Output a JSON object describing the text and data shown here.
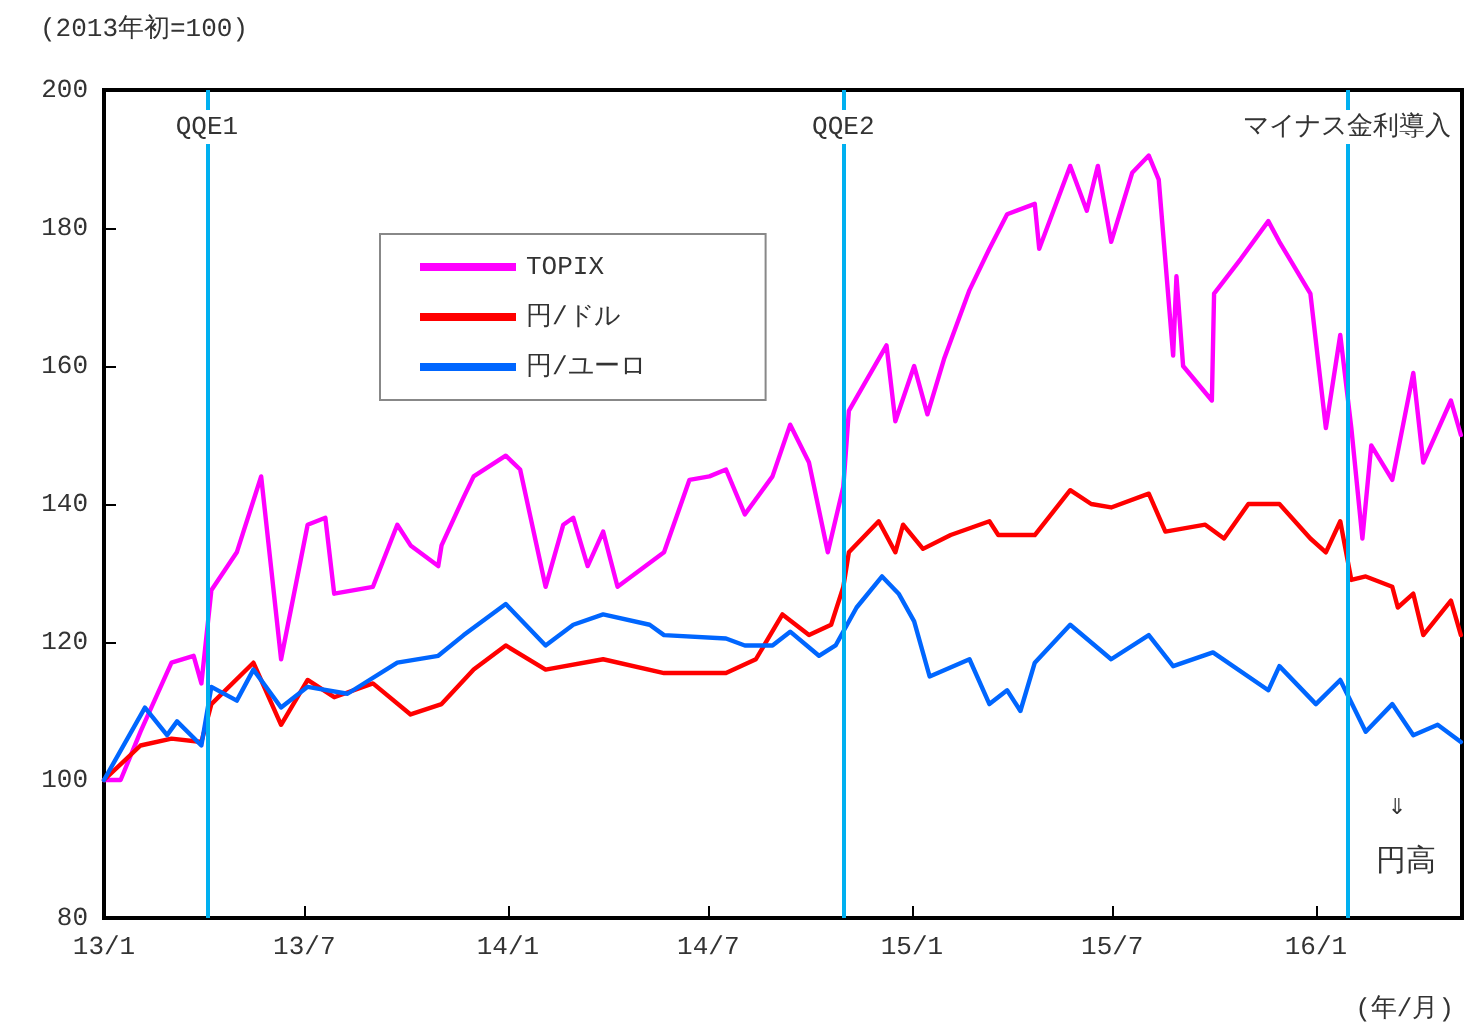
{
  "chart_data": {
    "type": "line",
    "ylabel": "(2013年初=100)",
    "xlabel": "(年/月)",
    "annotations": [
      "⇓",
      "円高"
    ],
    "xlim": [
      "2013-01-01",
      "2016-05-12"
    ],
    "xticks": [
      {
        "value": "2013-01-01",
        "label": "13/1"
      },
      {
        "value": "2013-07-01",
        "label": "13/7"
      },
      {
        "value": "2014-01-01",
        "label": "14/1"
      },
      {
        "value": "2014-07-01",
        "label": "14/7"
      },
      {
        "value": "2015-01-01",
        "label": "15/1"
      },
      {
        "value": "2015-07-01",
        "label": "15/7"
      },
      {
        "value": "2016-01-01",
        "label": "16/1"
      }
    ],
    "ylim": [
      80,
      200
    ],
    "yticks": [
      80,
      100,
      120,
      140,
      160,
      180,
      200
    ],
    "grid": false,
    "legend": "top left",
    "marker": "none",
    "line_style": "solid",
    "ref_lines": [
      {
        "axis": "x",
        "value": "2013-04-04",
        "label": "QQE1",
        "color": "#00b0f0"
      },
      {
        "axis": "x",
        "value": "2014-10-31",
        "label": "QQE2",
        "color": "#00b0f0"
      },
      {
        "axis": "x",
        "value": "2016-01-29",
        "label": "マイナス金利導入",
        "color": "#00b0f0"
      }
    ],
    "series": [
      {
        "name": "TOPIX",
        "color": "#ff00ff",
        "x": [
          "2013-01-01",
          "2013-01-16",
          "2013-02-03",
          "2013-03-03",
          "2013-03-23",
          "2013-03-30",
          "2013-04-08",
          "2013-05-01",
          "2013-05-23",
          "2013-06-10",
          "2013-07-04",
          "2013-07-20",
          "2013-07-28",
          "2013-09-01",
          "2013-09-23",
          "2013-10-05",
          "2013-10-30",
          "2013-11-02",
          "2013-11-22",
          "2013-12-01",
          "2013-12-30",
          "2014-01-12",
          "2014-02-04",
          "2014-02-20",
          "2014-03-01",
          "2014-03-14",
          "2014-03-28",
          "2014-04-10",
          "2014-05-22",
          "2014-06-14",
          "2014-07-02",
          "2014-07-17",
          "2014-08-03",
          "2014-08-28",
          "2014-09-13",
          "2014-09-30",
          "2014-10-17",
          "2014-10-31",
          "2014-11-05",
          "2014-12-09",
          "2014-12-17",
          "2015-01-03",
          "2015-01-15",
          "2015-01-30",
          "2015-02-22",
          "2015-03-12",
          "2015-03-28",
          "2015-04-22",
          "2015-04-26",
          "2015-05-24",
          "2015-06-08",
          "2015-06-18",
          "2015-06-30",
          "2015-07-19",
          "2015-08-03",
          "2015-08-12",
          "2015-08-25",
          "2015-08-28",
          "2015-09-03",
          "2015-09-29",
          "2015-10-01",
          "2015-10-25",
          "2015-11-19",
          "2015-11-29",
          "2015-12-27",
          "2016-01-10",
          "2016-01-23",
          "2016-02-02",
          "2016-02-12",
          "2016-02-20",
          "2016-03-10",
          "2016-03-29",
          "2016-04-07",
          "2016-05-02",
          "2016-05-11"
        ],
        "values": [
          100,
          100,
          107,
          117,
          118,
          114,
          127.5,
          133,
          144,
          117.5,
          137,
          138,
          127,
          128,
          137,
          134,
          131,
          134,
          141,
          144,
          147,
          145,
          128,
          137,
          138,
          131,
          136,
          128,
          133,
          143.5,
          144,
          145,
          138.5,
          144,
          151.5,
          146,
          133,
          142.5,
          153.5,
          163,
          152,
          160,
          153,
          161,
          171,
          177,
          182,
          183.5,
          177,
          189,
          182.5,
          189,
          178,
          188,
          190.5,
          187,
          161.5,
          173,
          160,
          155,
          170.5,
          175.5,
          181,
          178,
          170.5,
          151,
          164.5,
          151,
          135,
          148.5,
          143.5,
          159,
          146,
          155,
          150
        ]
      },
      {
        "name": "円/ドル",
        "color": "#ff0000",
        "x": [
          "2013-01-01",
          "2013-02-03",
          "2013-03-03",
          "2013-03-30",
          "2013-04-08",
          "2013-05-16",
          "2013-06-10",
          "2013-07-04",
          "2013-07-28",
          "2013-09-01",
          "2013-10-05",
          "2013-11-02",
          "2013-12-01",
          "2013-12-30",
          "2014-02-04",
          "2014-03-28",
          "2014-05-22",
          "2014-07-17",
          "2014-08-13",
          "2014-09-06",
          "2014-09-30",
          "2014-10-20",
          "2014-10-31",
          "2014-11-05",
          "2014-12-02",
          "2014-12-17",
          "2014-12-24",
          "2015-01-11",
          "2015-02-05",
          "2015-03-12",
          "2015-03-20",
          "2015-04-22",
          "2015-05-24",
          "2015-06-12",
          "2015-06-30",
          "2015-08-03",
          "2015-08-18",
          "2015-09-23",
          "2015-10-10",
          "2015-11-01",
          "2015-11-29",
          "2015-12-27",
          "2016-01-10",
          "2016-01-23",
          "2016-02-02",
          "2016-02-15",
          "2016-03-10",
          "2016-03-15",
          "2016-03-29",
          "2016-04-07",
          "2016-05-02",
          "2016-05-11"
        ],
        "values": [
          100,
          105,
          106,
          105.5,
          111,
          117,
          108,
          114.5,
          112,
          114,
          109.5,
          111,
          116,
          119.5,
          116,
          117.5,
          115.5,
          115.5,
          117.5,
          124,
          121,
          122.5,
          128,
          133,
          137.5,
          133,
          137,
          133.5,
          135.5,
          137.5,
          135.5,
          135.5,
          142,
          140,
          139.5,
          141.5,
          136,
          137,
          135,
          140,
          140,
          135,
          133,
          137.5,
          129,
          129.5,
          128,
          125,
          127,
          121,
          126,
          121
        ]
      },
      {
        "name": "円/ユーロ",
        "color": "#0066ff",
        "x": [
          "2013-01-01",
          "2013-02-07",
          "2013-02-27",
          "2013-03-08",
          "2013-03-30",
          "2013-04-08",
          "2013-05-01",
          "2013-05-16",
          "2013-06-10",
          "2013-07-04",
          "2013-08-09",
          "2013-09-23",
          "2013-10-30",
          "2013-11-22",
          "2013-12-30",
          "2014-02-04",
          "2014-03-01",
          "2014-03-28",
          "2014-05-09",
          "2014-05-22",
          "2014-07-17",
          "2014-08-03",
          "2014-08-28",
          "2014-09-13",
          "2014-10-09",
          "2014-10-24",
          "2014-11-12",
          "2014-12-05",
          "2014-12-20",
          "2015-01-03",
          "2015-01-17",
          "2015-02-22",
          "2015-03-12",
          "2015-03-28",
          "2015-04-09",
          "2015-04-22",
          "2015-05-24",
          "2015-06-30",
          "2015-08-03",
          "2015-08-25",
          "2015-09-30",
          "2015-11-19",
          "2015-11-29",
          "2016-01-01",
          "2016-01-23",
          "2016-02-15",
          "2016-03-10",
          "2016-03-29",
          "2016-04-20",
          "2016-05-11"
        ],
        "values": [
          100,
          110.5,
          106.5,
          108.5,
          105,
          113.5,
          111.5,
          116,
          110.5,
          113.5,
          112.5,
          117,
          118,
          121,
          125.5,
          119.5,
          122.5,
          124,
          122.5,
          121,
          120.5,
          119.5,
          119.5,
          121.5,
          118,
          119.5,
          125,
          129.5,
          127,
          123,
          115,
          117.5,
          111,
          113,
          110,
          117,
          122.5,
          117.5,
          121,
          116.5,
          118.5,
          113,
          116.5,
          111,
          114.5,
          107,
          111,
          106.5,
          108,
          105.5
        ]
      }
    ]
  }
}
